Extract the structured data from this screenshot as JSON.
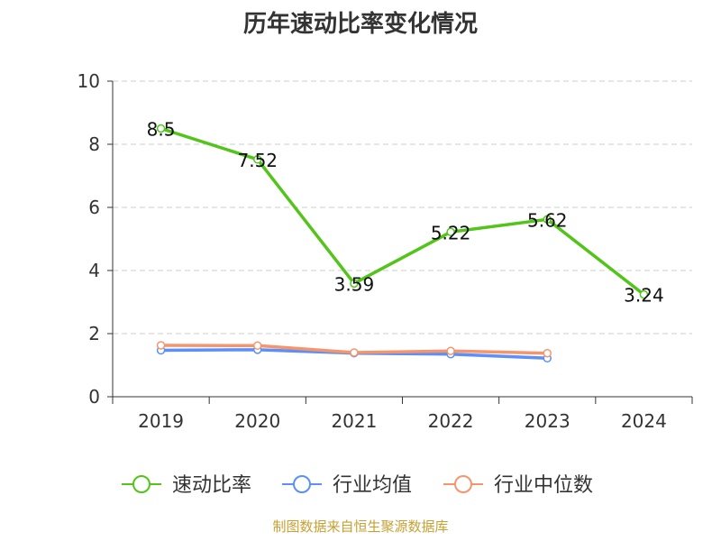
{
  "chart_data": {
    "type": "line",
    "title": "历年速动比率变化情况",
    "categories": [
      "2019",
      "2020",
      "2021",
      "2022",
      "2023",
      "2024"
    ],
    "series": [
      {
        "name": "速动比率",
        "color": "#52c41a",
        "values": [
          8.5,
          7.52,
          3.59,
          5.22,
          5.62,
          3.24
        ],
        "labels": [
          "8.5",
          "7.52",
          "3.59",
          "5.22",
          "5.62",
          "3.24"
        ]
      },
      {
        "name": "行业均值",
        "color": "#5b8ff9",
        "values": [
          1.47,
          1.49,
          1.38,
          1.35,
          1.22,
          null
        ]
      },
      {
        "name": "行业中位数",
        "color": "#f6956b",
        "values": [
          1.63,
          1.62,
          1.4,
          1.45,
          1.38,
          null
        ]
      }
    ],
    "yticks": [
      "0",
      "2",
      "4",
      "6",
      "8",
      "10"
    ],
    "ylim": [
      0,
      10
    ],
    "grid": true,
    "legend": "bottom"
  },
  "source": "制图数据来自恒生聚源数据库"
}
